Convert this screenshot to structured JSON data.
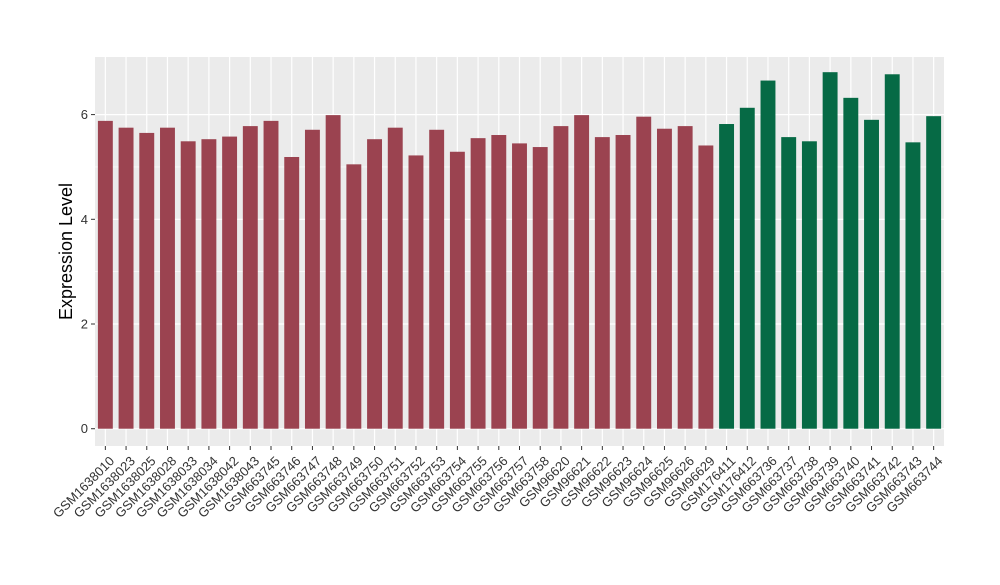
{
  "chart_data": {
    "type": "bar",
    "title": "",
    "xlabel": "",
    "ylabel": "Expression Level",
    "ylim": [
      -0.33,
      7.1
    ],
    "yticks": [
      0,
      2,
      4,
      6
    ],
    "grid": true,
    "legend": "none",
    "categories": [
      "GSM1638010",
      "GSM1638023",
      "GSM1638025",
      "GSM1638028",
      "GSM1638033",
      "GSM1638034",
      "GSM1638042",
      "GSM1638043",
      "GSM663745",
      "GSM663746",
      "GSM663747",
      "GSM663748",
      "GSM663749",
      "GSM663750",
      "GSM663751",
      "GSM663752",
      "GSM663753",
      "GSM663754",
      "GSM663755",
      "GSM663756",
      "GSM663757",
      "GSM663758",
      "GSM96620",
      "GSM96621",
      "GSM96622",
      "GSM96623",
      "GSM96624",
      "GSM96625",
      "GSM96626",
      "GSM96629",
      "GSM176411",
      "GSM176412",
      "GSM663736",
      "GSM663737",
      "GSM663738",
      "GSM663739",
      "GSM663740",
      "GSM663741",
      "GSM663742",
      "GSM663743",
      "GSM663744"
    ],
    "values": [
      5.88,
      5.75,
      5.65,
      5.75,
      5.49,
      5.53,
      5.58,
      5.78,
      5.88,
      5.19,
      5.71,
      5.99,
      5.05,
      5.53,
      5.75,
      5.22,
      5.71,
      5.29,
      5.55,
      5.61,
      5.45,
      5.38,
      5.78,
      5.99,
      5.57,
      5.61,
      5.96,
      5.73,
      5.78,
      5.41,
      5.82,
      6.13,
      6.65,
      5.57,
      5.49,
      6.81,
      6.32,
      5.9,
      6.77,
      5.47,
      5.97
    ],
    "groups": [
      0,
      0,
      0,
      0,
      0,
      0,
      0,
      0,
      0,
      0,
      0,
      0,
      0,
      0,
      0,
      0,
      0,
      0,
      0,
      0,
      0,
      0,
      0,
      0,
      0,
      0,
      0,
      0,
      0,
      0,
      1,
      1,
      1,
      1,
      1,
      1,
      1,
      1,
      1,
      1,
      1
    ],
    "colors": [
      "#9b4350",
      "#066a45"
    ],
    "panel_background": "#ebebeb",
    "gridline_color": "#ffffff"
  }
}
